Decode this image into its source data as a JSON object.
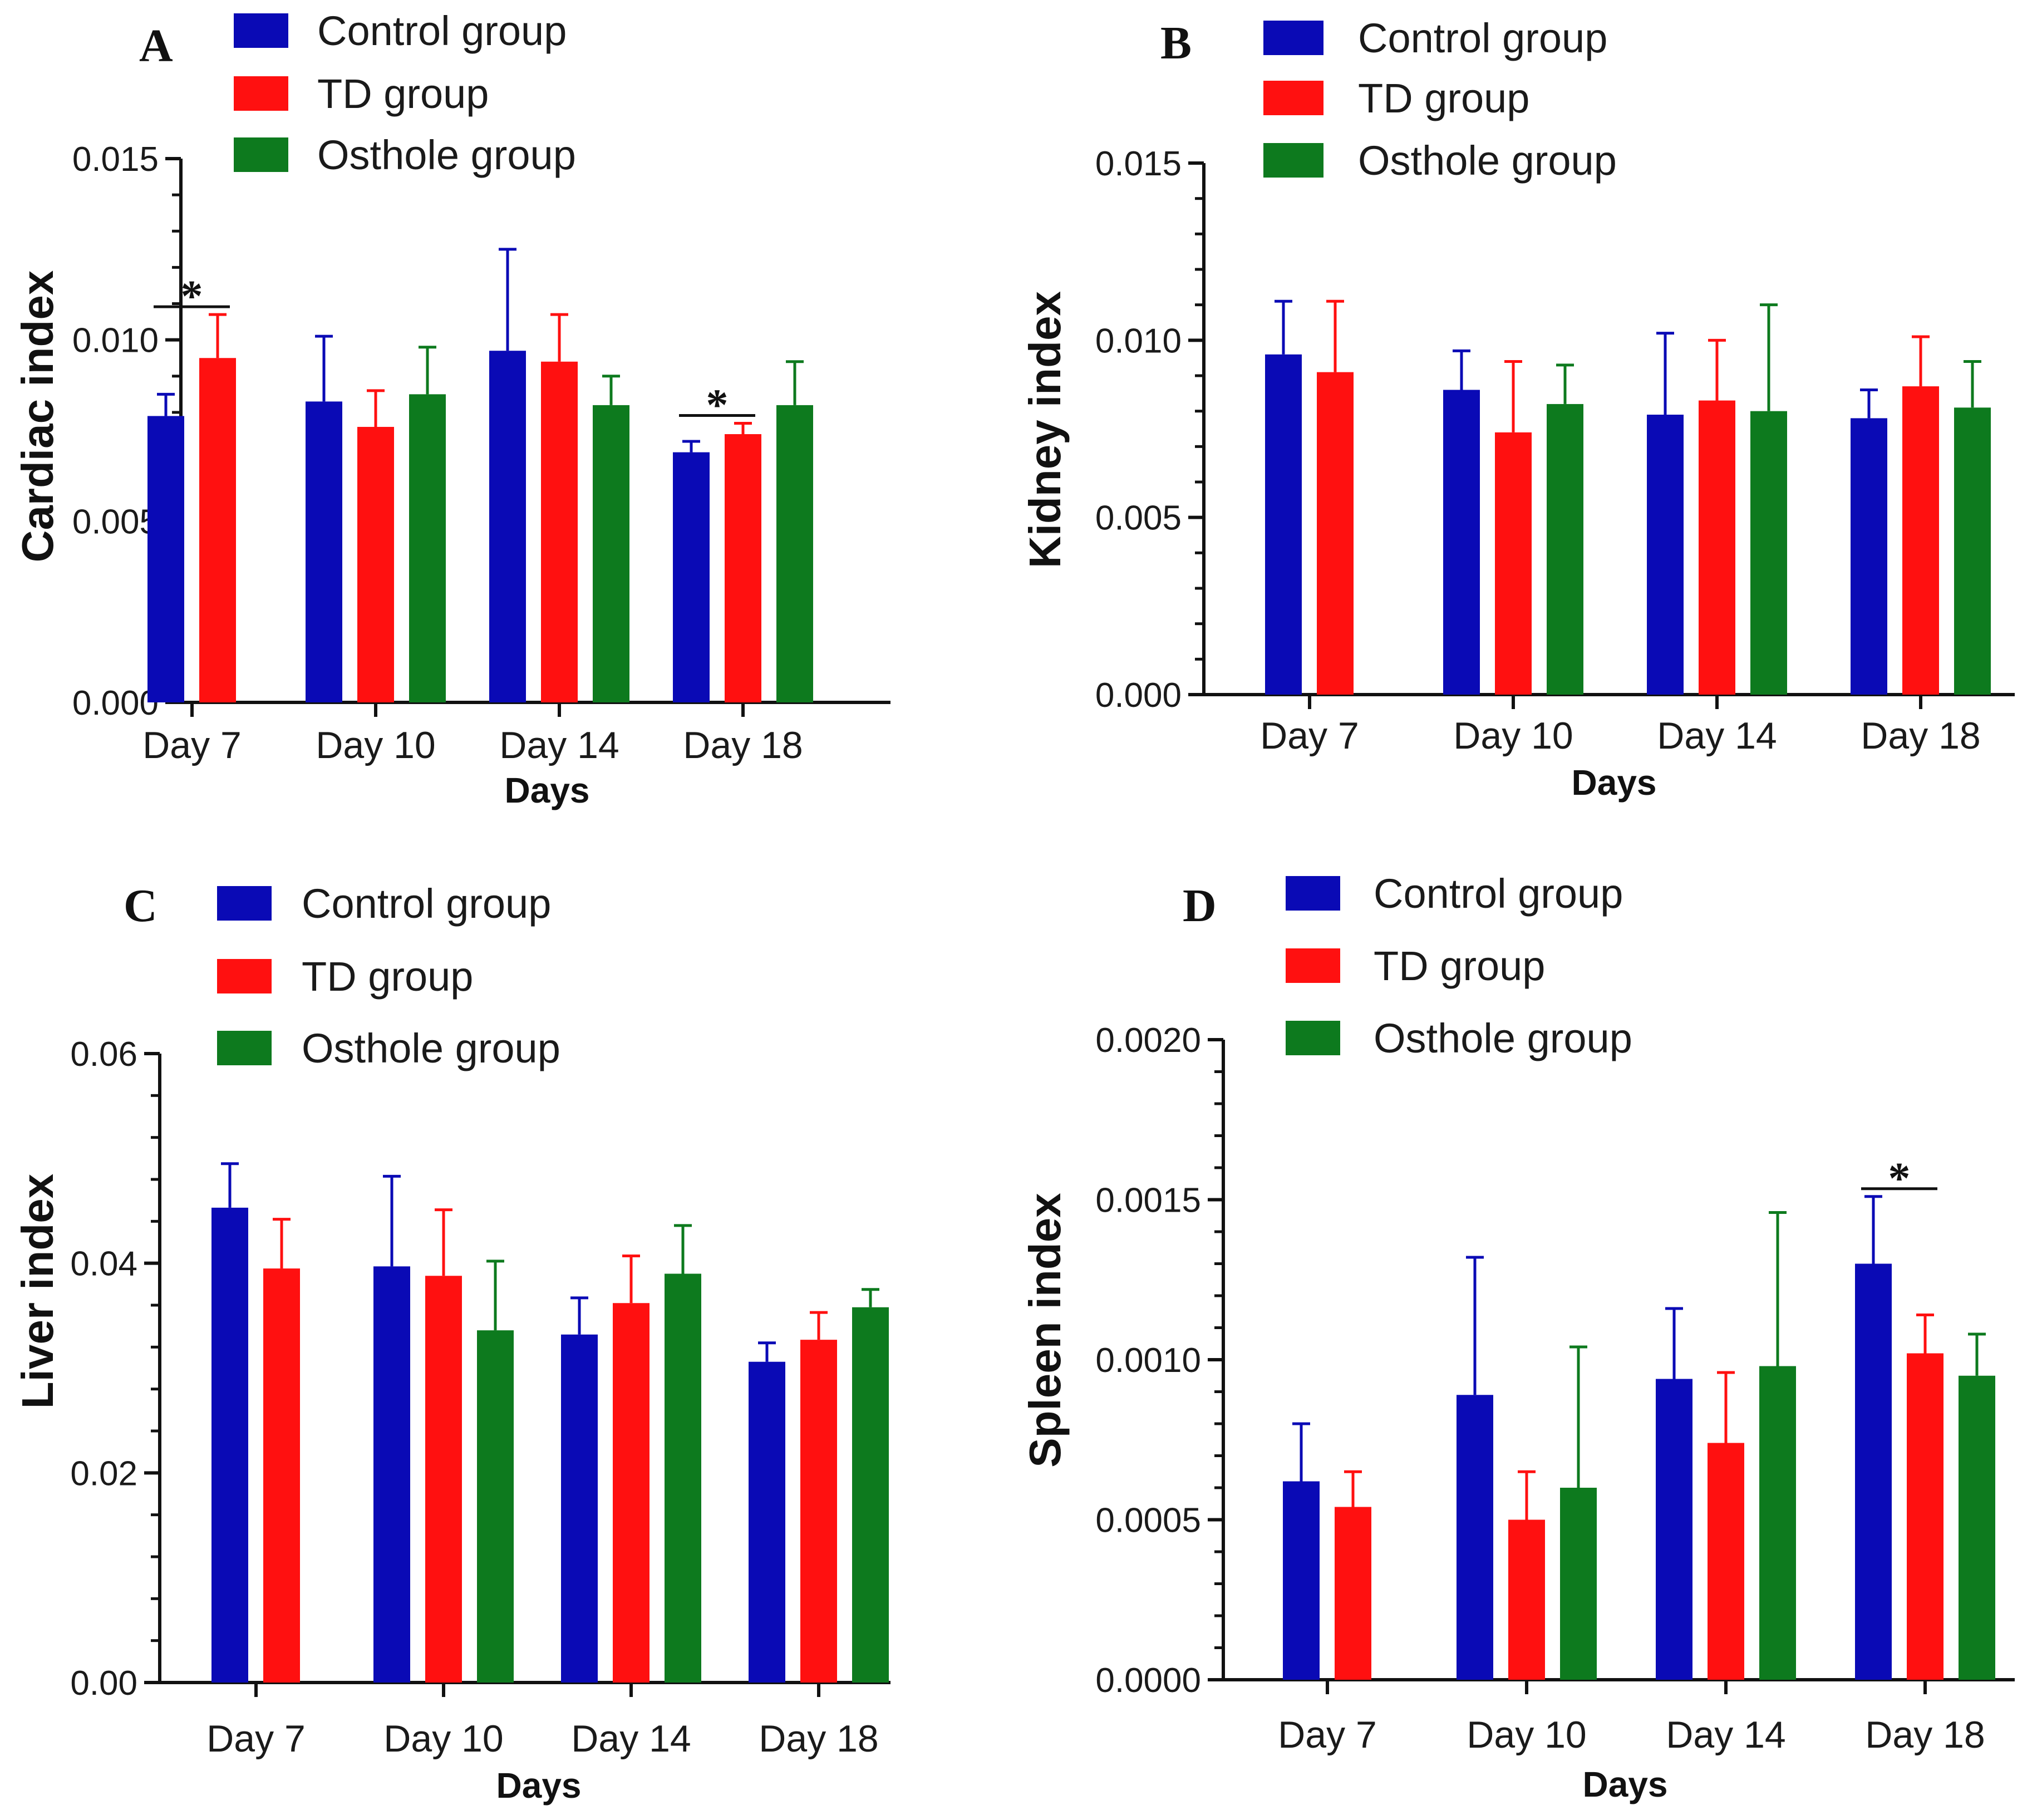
{
  "colors": {
    "Control group": "#0A0AB5",
    "TD group": "#FF1010",
    "Osthole group": "#0D7A1E",
    "axis": "#111111"
  },
  "chart_data": [
    {
      "type": "bar",
      "panel": "A",
      "xlabel": "Days",
      "ylabel": "Cardiac index",
      "categories": [
        "Day 7",
        "Day 10",
        "Day 14",
        "Day 18"
      ],
      "ylim": [
        0,
        0.015
      ],
      "yticks": [
        "0.000",
        "0.005",
        "0.010",
        "0.015"
      ],
      "ytick_values": [
        0,
        0.005,
        0.01,
        0.015
      ],
      "legend": [
        "Control group",
        "TD group",
        "Osthole group"
      ],
      "series": [
        {
          "name": "Control group",
          "values": [
            0.0079,
            0.0083,
            0.0097,
            0.0069
          ],
          "errors": [
            0.0006,
            0.0018,
            0.0028,
            0.0003
          ]
        },
        {
          "name": "TD group",
          "values": [
            0.0095,
            0.0076,
            0.0094,
            0.0074
          ],
          "errors": [
            0.0012,
            0.001,
            0.0013,
            0.0003
          ]
        },
        {
          "name": "Osthole group",
          "values": [
            null,
            0.0085,
            0.0082,
            0.0082
          ],
          "errors": [
            null,
            0.0013,
            0.0008,
            0.0012
          ]
        }
      ],
      "significance": [
        {
          "category": "Day 7",
          "label": "*"
        },
        {
          "category": "Day 18",
          "label": "*"
        }
      ]
    },
    {
      "type": "bar",
      "panel": "B",
      "xlabel": "Days",
      "ylabel": "Kidney index",
      "categories": [
        "Day 7",
        "Day 10",
        "Day 14",
        "Day 18"
      ],
      "ylim": [
        0,
        0.015
      ],
      "yticks": [
        "0.000",
        "0.005",
        "0.010",
        "0.015"
      ],
      "ytick_values": [
        0,
        0.005,
        0.01,
        0.015
      ],
      "legend": [
        "Control group",
        "TD group",
        "Osthole group"
      ],
      "series": [
        {
          "name": "Control group",
          "values": [
            0.0096,
            0.0086,
            0.0079,
            0.0078
          ],
          "errors": [
            0.0015,
            0.0011,
            0.0023,
            0.0008
          ]
        },
        {
          "name": "TD group",
          "values": [
            0.0091,
            0.0074,
            0.0083,
            0.0087
          ],
          "errors": [
            0.002,
            0.002,
            0.0017,
            0.0014
          ]
        },
        {
          "name": "Osthole group",
          "values": [
            null,
            0.0082,
            0.008,
            0.0081
          ],
          "errors": [
            null,
            0.0011,
            0.003,
            0.0013
          ]
        }
      ],
      "significance": []
    },
    {
      "type": "bar",
      "panel": "C",
      "xlabel": "Days",
      "ylabel": "Liver index",
      "categories": [
        "Day 7",
        "Day 10",
        "Day 14",
        "Day 18"
      ],
      "ylim": [
        0,
        0.06
      ],
      "yticks": [
        "0.00",
        "0.02",
        "0.04",
        "0.06"
      ],
      "ytick_values": [
        0,
        0.02,
        0.04,
        0.06
      ],
      "legend": [
        "Control group",
        "TD group",
        "Osthole group"
      ],
      "series": [
        {
          "name": "Control group",
          "values": [
            0.0453,
            0.0397,
            0.0332,
            0.0306
          ],
          "errors": [
            0.0042,
            0.0086,
            0.0035,
            0.0018
          ]
        },
        {
          "name": "TD group",
          "values": [
            0.0395,
            0.0388,
            0.0362,
            0.0327
          ],
          "errors": [
            0.0047,
            0.0063,
            0.0045,
            0.0026
          ]
        },
        {
          "name": "Osthole group",
          "values": [
            null,
            0.0336,
            0.039,
            0.0358
          ],
          "errors": [
            null,
            0.0066,
            0.0046,
            0.0017
          ]
        }
      ],
      "significance": []
    },
    {
      "type": "bar",
      "panel": "D",
      "xlabel": "Days",
      "ylabel": "Spleen index",
      "categories": [
        "Day 7",
        "Day 10",
        "Day 14",
        "Day 18"
      ],
      "ylim": [
        0,
        0.002
      ],
      "yticks": [
        "0.0000",
        "0.0005",
        "0.0010",
        "0.0015",
        "0.0020"
      ],
      "ytick_values": [
        0,
        0.0005,
        0.001,
        0.0015,
        0.002
      ],
      "legend": [
        "Control group",
        "TD group",
        "Osthole group"
      ],
      "series": [
        {
          "name": "Control group",
          "values": [
            0.00062,
            0.00089,
            0.00094,
            0.0013
          ],
          "errors": [
            0.00018,
            0.00043,
            0.00022,
            0.00021
          ]
        },
        {
          "name": "TD group",
          "values": [
            0.00054,
            0.0005,
            0.00074,
            0.00102
          ],
          "errors": [
            0.00011,
            0.00015,
            0.00022,
            0.00012
          ]
        },
        {
          "name": "Osthole group",
          "values": [
            null,
            0.0006,
            0.00098,
            0.00095
          ],
          "errors": [
            null,
            0.00044,
            0.00048,
            0.00013
          ]
        }
      ],
      "significance": [
        {
          "category": "Day 18",
          "label": "*"
        }
      ]
    }
  ]
}
